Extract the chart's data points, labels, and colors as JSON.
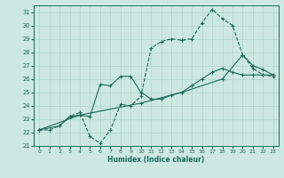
{
  "xlabel": "Humidex (Indice chaleur)",
  "xlim": [
    -0.5,
    23.5
  ],
  "ylim": [
    21,
    31.5
  ],
  "yticks": [
    21,
    22,
    23,
    24,
    25,
    26,
    27,
    28,
    29,
    30,
    31
  ],
  "xticks": [
    0,
    1,
    2,
    3,
    4,
    5,
    6,
    7,
    8,
    9,
    10,
    11,
    12,
    13,
    14,
    15,
    16,
    17,
    18,
    19,
    20,
    21,
    22,
    23
  ],
  "bg_color": "#cce8e0",
  "grid_color": "#b0d4cc",
  "line_color": "#1a6b5a",
  "line1_x": [
    0,
    1,
    2,
    3,
    4,
    5,
    6,
    7,
    8,
    9,
    10,
    11,
    12,
    13,
    14,
    15,
    16,
    17,
    18,
    19,
    20,
    21,
    22,
    23
  ],
  "line1_y": [
    22.2,
    22.2,
    22.5,
    23.2,
    23.5,
    21.7,
    21.2,
    22.2,
    24.1,
    24.0,
    24.7,
    28.3,
    28.8,
    29.0,
    28.9,
    29.0,
    30.2,
    31.2,
    30.5,
    30.0,
    27.8,
    26.8,
    26.3,
    26.2
  ],
  "line2_x": [
    0,
    2,
    3,
    4,
    5,
    6,
    7,
    8,
    9,
    10,
    11,
    12,
    13,
    14,
    15,
    16,
    17,
    18,
    19,
    20,
    21,
    22,
    23
  ],
  "line2_y": [
    22.2,
    22.5,
    23.2,
    23.3,
    23.2,
    25.6,
    25.5,
    26.2,
    26.2,
    25.0,
    24.5,
    24.5,
    24.8,
    25.0,
    25.5,
    26.0,
    26.5,
    26.8,
    26.5,
    26.3,
    26.3,
    26.3,
    26.3
  ],
  "line3_x": [
    0,
    4,
    10,
    14,
    18,
    20,
    21,
    22,
    23
  ],
  "line3_y": [
    22.2,
    23.3,
    24.2,
    25.0,
    26.0,
    27.8,
    27.0,
    26.7,
    26.3
  ]
}
